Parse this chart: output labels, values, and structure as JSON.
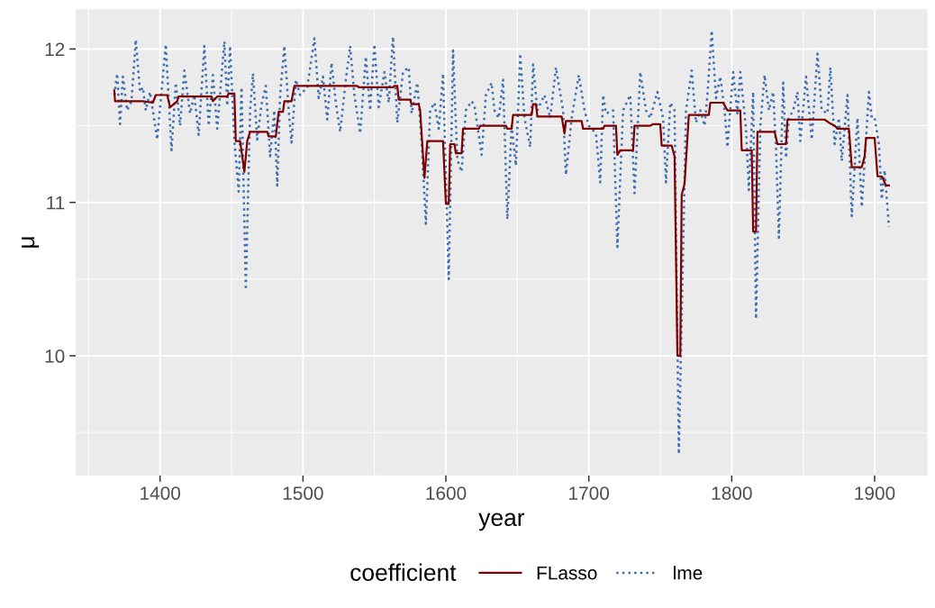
{
  "chart_data": {
    "type": "line",
    "xlabel": "year",
    "ylabel": "μ",
    "legend_title": "coefficient",
    "legend": "bottom",
    "grid": true,
    "xlim": [
      1341,
      1937
    ],
    "xticks": [
      1400,
      1500,
      1600,
      1700,
      1800,
      1900
    ],
    "ylim": [
      9.22,
      12.26
    ],
    "yticks": [
      10,
      11,
      12
    ],
    "series": [
      {
        "name": "FLasso",
        "color": "#7f0000",
        "line_style": "solid",
        "x": [
          1368,
          1368.5,
          1370,
          1388,
          1395,
          1397,
          1405,
          1407,
          1412,
          1413,
          1436,
          1437,
          1440,
          1447,
          1448,
          1452,
          1453,
          1456,
          1459,
          1461,
          1463,
          1475,
          1476,
          1481,
          1483,
          1486,
          1487,
          1492,
          1494,
          1538,
          1539,
          1563,
          1564,
          1566,
          1567,
          1575,
          1576,
          1581,
          1582,
          1585,
          1587,
          1598,
          1600,
          1602,
          1603,
          1606,
          1607,
          1611,
          1612,
          1623,
          1624,
          1642,
          1643,
          1646,
          1647,
          1660,
          1661,
          1663,
          1664,
          1681,
          1683,
          1684,
          1695,
          1696,
          1710,
          1711,
          1719,
          1720,
          1722,
          1731,
          1732,
          1743,
          1745,
          1750,
          1751,
          1758,
          1760,
          1762,
          1764,
          1765,
          1767,
          1770,
          1784,
          1785,
          1794,
          1797,
          1806,
          1807,
          1814,
          1815,
          1817,
          1818,
          1830,
          1832,
          1838,
          1839,
          1865,
          1868,
          1872,
          1874,
          1882,
          1884,
          1891,
          1893,
          1894,
          1900,
          1902,
          1905,
          1908,
          1910
        ],
        "values": [
          11.73,
          11.66,
          11.66,
          11.66,
          11.65,
          11.7,
          11.7,
          11.62,
          11.66,
          11.69,
          11.69,
          11.66,
          11.69,
          11.69,
          11.71,
          11.71,
          11.4,
          11.4,
          11.2,
          11.4,
          11.46,
          11.46,
          11.43,
          11.43,
          11.59,
          11.59,
          11.66,
          11.66,
          11.76,
          11.76,
          11.75,
          11.75,
          11.76,
          11.76,
          11.67,
          11.67,
          11.64,
          11.64,
          11.6,
          11.16,
          11.4,
          11.4,
          10.99,
          10.99,
          11.38,
          11.38,
          11.32,
          11.32,
          11.48,
          11.48,
          11.5,
          11.5,
          11.48,
          11.48,
          11.57,
          11.57,
          11.64,
          11.64,
          11.56,
          11.56,
          11.45,
          11.53,
          11.53,
          11.48,
          11.48,
          11.5,
          11.5,
          11.31,
          11.34,
          11.34,
          11.5,
          11.5,
          11.51,
          11.51,
          11.37,
          11.37,
          11.3,
          10.0,
          10.0,
          11.05,
          11.12,
          11.57,
          11.57,
          11.65,
          11.65,
          11.6,
          11.6,
          11.34,
          11.34,
          10.81,
          10.81,
          11.46,
          11.46,
          11.38,
          11.38,
          11.54,
          11.54,
          11.52,
          11.5,
          11.48,
          11.48,
          11.23,
          11.23,
          11.3,
          11.42,
          11.42,
          11.17,
          11.17,
          11.11,
          11.11
        ]
      },
      {
        "name": "lme",
        "color": "#3d6fb0",
        "line_style": "dotted",
        "x": [
          1368,
          1370,
          1372,
          1374,
          1377,
          1380,
          1383,
          1386,
          1388,
          1390,
          1393,
          1398,
          1404,
          1408,
          1411,
          1414,
          1417,
          1421,
          1424,
          1427,
          1431,
          1434,
          1437,
          1440,
          1445,
          1447,
          1449,
          1452,
          1455,
          1457,
          1460,
          1463,
          1465,
          1468,
          1471,
          1474,
          1477,
          1480,
          1482,
          1484,
          1487,
          1490,
          1492,
          1495,
          1498,
          1503,
          1508,
          1511,
          1514,
          1517,
          1520,
          1523,
          1526,
          1530,
          1533,
          1536,
          1540,
          1544,
          1547,
          1550,
          1553,
          1557,
          1560,
          1563,
          1566,
          1570,
          1574,
          1576,
          1580,
          1583,
          1586,
          1589,
          1592,
          1595,
          1598,
          1602,
          1605,
          1608,
          1611,
          1614,
          1618,
          1620,
          1625,
          1628,
          1632,
          1634,
          1637,
          1640,
          1643,
          1646,
          1649,
          1652,
          1655,
          1659,
          1661,
          1664,
          1669,
          1673,
          1677,
          1682,
          1684,
          1688,
          1693,
          1697,
          1700,
          1705,
          1708,
          1710,
          1712,
          1717,
          1720,
          1724,
          1729,
          1732,
          1736,
          1740,
          1743,
          1748,
          1752,
          1754,
          1757,
          1760,
          1763,
          1768,
          1772,
          1775,
          1778,
          1781,
          1783,
          1786,
          1789,
          1792,
          1795,
          1797,
          1801,
          1804,
          1806,
          1810,
          1812,
          1815,
          1817,
          1820,
          1823,
          1826,
          1829,
          1831,
          1833,
          1836,
          1838,
          1840,
          1843,
          1846,
          1848,
          1852,
          1856,
          1860,
          1863,
          1867,
          1869,
          1872,
          1875,
          1877,
          1881,
          1884,
          1888,
          1891,
          1896,
          1898,
          1900,
          1903,
          1905,
          1907,
          1910
        ],
        "values": [
          11.7,
          11.84,
          11.51,
          11.82,
          11.6,
          11.66,
          12.06,
          11.72,
          11.75,
          11.6,
          11.72,
          11.41,
          12.03,
          11.34,
          11.78,
          11.5,
          11.86,
          11.58,
          11.7,
          11.44,
          12.02,
          11.5,
          11.83,
          11.48,
          12.05,
          11.63,
          12.02,
          11.4,
          11.07,
          11.75,
          10.43,
          11.6,
          11.84,
          11.41,
          11.64,
          11.76,
          11.3,
          11.6,
          11.11,
          11.7,
          12.02,
          11.6,
          11.39,
          11.8,
          11.7,
          11.75,
          12.07,
          11.68,
          11.82,
          11.54,
          11.91,
          11.65,
          11.46,
          11.8,
          12.02,
          11.7,
          11.45,
          11.95,
          11.6,
          12.03,
          11.62,
          11.85,
          11.65,
          12.08,
          11.52,
          11.85,
          11.88,
          11.58,
          11.78,
          11.4,
          10.86,
          11.6,
          11.65,
          11.48,
          11.84,
          10.5,
          11.99,
          11.28,
          11.2,
          11.6,
          11.66,
          11.63,
          11.31,
          11.7,
          11.78,
          11.6,
          11.55,
          11.8,
          10.89,
          11.5,
          11.24,
          11.97,
          11.55,
          11.36,
          11.9,
          11.6,
          11.7,
          11.55,
          11.88,
          11.6,
          11.18,
          11.55,
          11.83,
          11.6,
          11.5,
          11.45,
          11.13,
          11.7,
          11.58,
          11.6,
          10.71,
          11.6,
          11.7,
          11.06,
          11.85,
          11.6,
          11.55,
          11.72,
          11.55,
          11.13,
          11.65,
          11.6,
          9.36,
          11.6,
          11.86,
          11.52,
          11.6,
          11.5,
          11.7,
          12.12,
          11.68,
          11.82,
          11.6,
          11.36,
          11.85,
          11.58,
          11.85,
          11.48,
          11.08,
          11.72,
          10.24,
          11.5,
          11.83,
          11.6,
          11.72,
          11.35,
          10.77,
          11.78,
          11.29,
          11.55,
          11.6,
          11.72,
          11.4,
          11.82,
          11.41,
          11.97,
          11.6,
          11.58,
          11.88,
          11.38,
          11.55,
          11.27,
          11.7,
          10.91,
          11.55,
          10.97,
          11.72,
          11.55,
          11.55,
          11.38,
          11.02,
          11.21,
          10.84
        ]
      }
    ]
  }
}
